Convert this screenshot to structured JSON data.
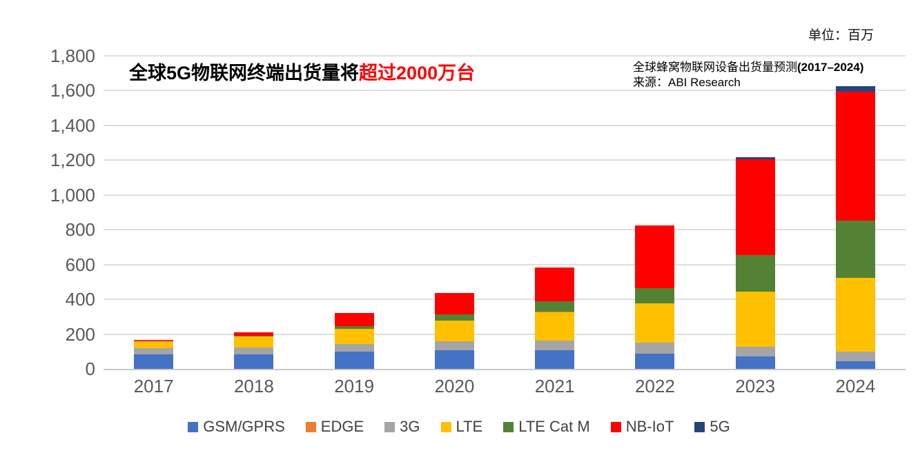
{
  "unit_label": "单位：百万",
  "title": {
    "black": "全球5G物联网终端出货量将",
    "red": "超过2000万台"
  },
  "subtitle": {
    "line1": "全球蜂窝物联网设备出货量预测",
    "line1_bold": "(2017–2024)",
    "line2": "来源：ABI Research"
  },
  "colors": {
    "gsm_gprs": "#4472C4",
    "edge": "#ED7D31",
    "three_g": "#A5A5A5",
    "lte": "#FFC000",
    "lte_cat_m": "#548235",
    "nb_iot": "#FF0000",
    "five_g": "#264478",
    "gridline": "#DEDEDE",
    "axis_text": "#595959",
    "title_red": "#FF0000"
  },
  "chart_data": {
    "type": "bar",
    "stacked": true,
    "title_note": "全球5G物联网终端出货量将超过2000万台",
    "unit": "百万 (millions)",
    "categories": [
      "2017",
      "2018",
      "2019",
      "2020",
      "2021",
      "2022",
      "2023",
      "2024"
    ],
    "series": [
      {
        "name": "GSM/GPRS",
        "color": "#4472C4",
        "values": [
          85,
          83,
          99,
          108,
          106,
          88,
          70,
          42
        ]
      },
      {
        "name": "EDGE",
        "color": "#ED7D31",
        "values": [
          6,
          2,
          2,
          2,
          2,
          2,
          2,
          2
        ]
      },
      {
        "name": "3G",
        "color": "#A5A5A5",
        "values": [
          35,
          42,
          42,
          50,
          55,
          63,
          56,
          57
        ]
      },
      {
        "name": "LTE",
        "color": "#FFC000",
        "values": [
          36,
          60,
          88,
          119,
          165,
          225,
          317,
          423
        ]
      },
      {
        "name": "LTE Cat M",
        "color": "#548235",
        "values": [
          0,
          3,
          16,
          33,
          62,
          86,
          211,
          330
        ]
      },
      {
        "name": "NB-IoT",
        "color": "#FF0000",
        "values": [
          5,
          20,
          73,
          124,
          195,
          362,
          549,
          742
        ]
      },
      {
        "name": "5G",
        "color": "#264478",
        "values": [
          0,
          0,
          0,
          0,
          0,
          0,
          14,
          28
        ]
      }
    ],
    "totals": [
      167,
      210,
      320,
      436,
      585,
      826,
      1219,
      1624
    ],
    "stack_order_bottom_to_top": [
      "GSM/GPRS",
      "3G",
      "LTE",
      "EDGE",
      "LTE Cat M",
      "NB-IoT",
      "5G"
    ],
    "xlabel": "",
    "ylabel": "",
    "ylim": [
      0,
      1800
    ],
    "ytick_step": 200,
    "y_tick_labels": [
      "0",
      "200",
      "400",
      "600",
      "800",
      "1,000",
      "1,200",
      "1,400",
      "1,600",
      "1,800"
    ],
    "grid": true,
    "legend_position": "bottom"
  }
}
